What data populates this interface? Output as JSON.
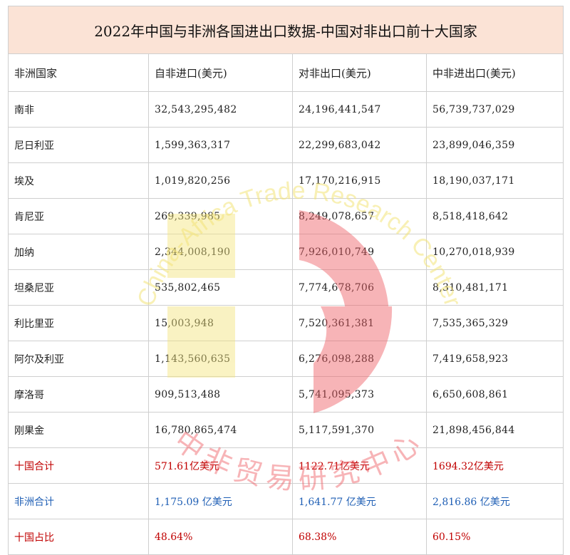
{
  "title": "2022年中国与非洲各国进出口数据-中国对非出口前十大国家",
  "headers": [
    "非洲国家",
    "自非进口(美元)",
    "对非出口(美元)",
    "中非进出口(美元)"
  ],
  "rows": [
    [
      "南非",
      "32,543,295,482",
      "24,196,441,547",
      "56,739,737,029"
    ],
    [
      "尼日利亚",
      "1,599,363,317",
      "22,299,683,042",
      "23,899,046,359"
    ],
    [
      "埃及",
      "1,019,820,256",
      "17,170,216,915",
      "18,190,037,171"
    ],
    [
      "肯尼亚",
      "269,339,985",
      "8,249,078,657",
      "8,518,418,642"
    ],
    [
      "加纳",
      "2,344,008,190",
      "7,926,010,749",
      "10,270,018,939"
    ],
    [
      "坦桑尼亚",
      "535,802,465",
      "7,774,678,706",
      "8,310,481,171"
    ],
    [
      "利比里亚",
      "15,003,948",
      "7,520,361,381",
      "7,535,365,329"
    ],
    [
      "阿尔及利亚",
      "1,143,560,635",
      "6,276,098,288",
      "7,419,658,923"
    ],
    [
      "摩洛哥",
      "909,513,488",
      "5,741,095,373",
      "6,650,608,861"
    ],
    [
      "刚果金",
      "16,780,865,474",
      "5,117,591,370",
      "21,898,456,844"
    ]
  ],
  "summary": [
    {
      "label": "十国合计",
      "values": [
        "571.61亿美元",
        "1122.71亿美元",
        "1694.32亿美元"
      ],
      "color": "#c00000"
    },
    {
      "label": "非洲合计",
      "values": [
        "1,175.09 亿美元",
        "1,641.77 亿美元",
        "2,816.86 亿美元"
      ],
      "color": "#1f5fb5"
    },
    {
      "label": "十国占比",
      "values": [
        "48.64%",
        "68.38%",
        "60.15%"
      ],
      "color": "#c00000"
    }
  ],
  "watermark": {
    "text_en": "China-Africa Trade Research Center",
    "text_cn": "中非贸易研究中心",
    "colors": {
      "yellow": "#f3e479",
      "red": "#ee5b61"
    }
  }
}
